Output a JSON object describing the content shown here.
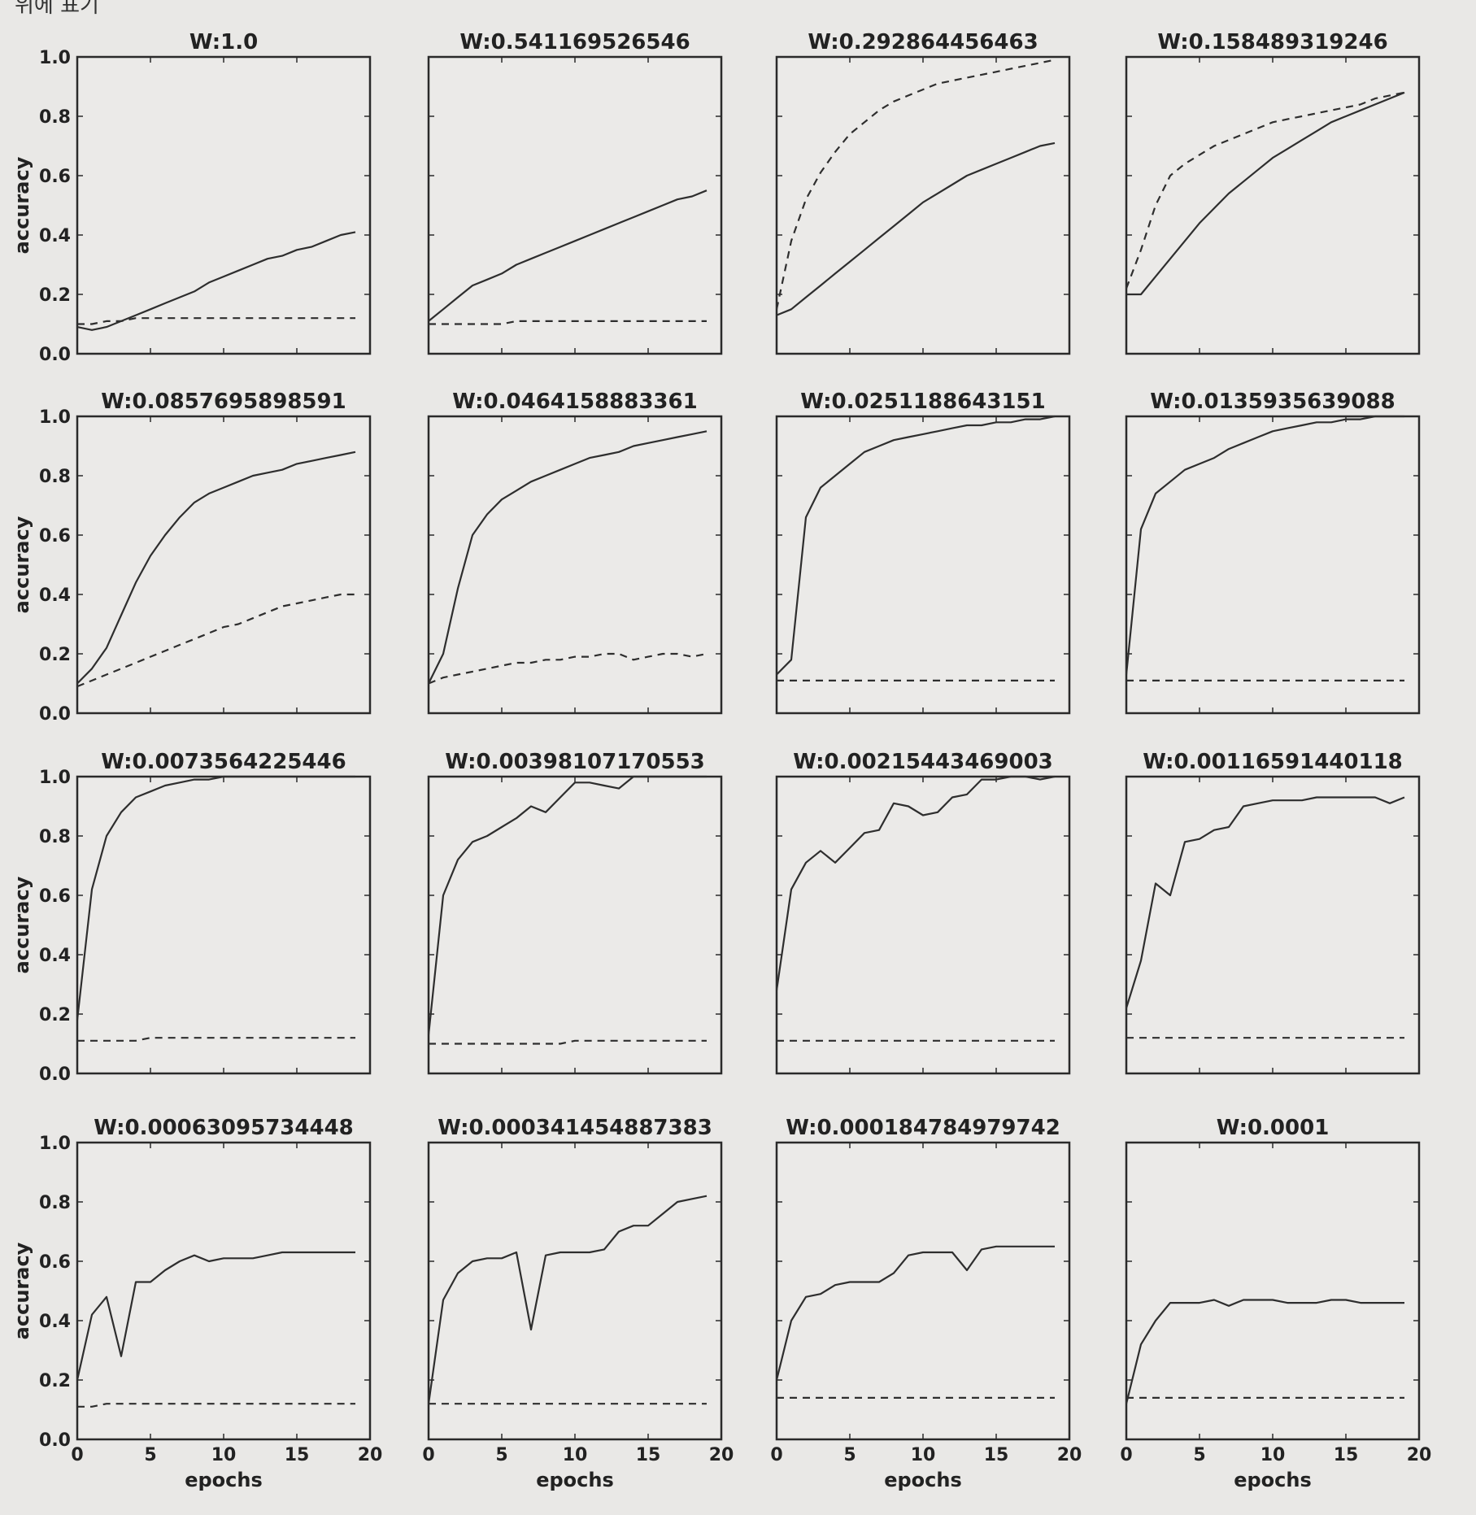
{
  "top_note": "위에 표기",
  "chart_data": {
    "type": "line",
    "layout": "4x4 grid of subplots",
    "xlabel": "epochs",
    "ylabel": "accuracy",
    "xlim": [
      0,
      20
    ],
    "ylim": [
      0.0,
      1.0
    ],
    "xticks": [
      0,
      5,
      10,
      15,
      20
    ],
    "yticks": [
      0.0,
      0.2,
      0.4,
      0.6,
      0.8,
      1.0
    ],
    "line_styles": [
      "solid",
      "dashed"
    ],
    "x": [
      0,
      1,
      2,
      3,
      4,
      5,
      6,
      7,
      8,
      9,
      10,
      11,
      12,
      13,
      14,
      15,
      16,
      17,
      18,
      19
    ],
    "subplots": [
      {
        "title": "W:1.0",
        "series": [
          {
            "style": "solid",
            "values": [
              0.09,
              0.08,
              0.09,
              0.11,
              0.13,
              0.15,
              0.17,
              0.19,
              0.21,
              0.24,
              0.26,
              0.28,
              0.3,
              0.32,
              0.33,
              0.35,
              0.36,
              0.38,
              0.4,
              0.41
            ]
          },
          {
            "style": "dashed",
            "values": [
              0.1,
              0.1,
              0.11,
              0.11,
              0.12,
              0.12,
              0.12,
              0.12,
              0.12,
              0.12,
              0.12,
              0.12,
              0.12,
              0.12,
              0.12,
              0.12,
              0.12,
              0.12,
              0.12,
              0.12
            ]
          }
        ]
      },
      {
        "title": "W:0.541169526546",
        "series": [
          {
            "style": "solid",
            "values": [
              0.11,
              0.15,
              0.19,
              0.23,
              0.25,
              0.27,
              0.3,
              0.32,
              0.34,
              0.36,
              0.38,
              0.4,
              0.42,
              0.44,
              0.46,
              0.48,
              0.5,
              0.52,
              0.53,
              0.55
            ]
          },
          {
            "style": "dashed",
            "values": [
              0.1,
              0.1,
              0.1,
              0.1,
              0.1,
              0.1,
              0.11,
              0.11,
              0.11,
              0.11,
              0.11,
              0.11,
              0.11,
              0.11,
              0.11,
              0.11,
              0.11,
              0.11,
              0.11,
              0.11
            ]
          }
        ]
      },
      {
        "title": "W:0.292864456463",
        "series": [
          {
            "style": "solid",
            "values": [
              0.13,
              0.15,
              0.19,
              0.23,
              0.27,
              0.31,
              0.35,
              0.39,
              0.43,
              0.47,
              0.51,
              0.54,
              0.57,
              0.6,
              0.62,
              0.64,
              0.66,
              0.68,
              0.7,
              0.71
            ]
          },
          {
            "style": "dashed",
            "values": [
              0.15,
              0.38,
              0.52,
              0.61,
              0.68,
              0.74,
              0.78,
              0.82,
              0.85,
              0.87,
              0.89,
              0.91,
              0.92,
              0.93,
              0.94,
              0.95,
              0.96,
              0.97,
              0.98,
              0.99
            ]
          }
        ]
      },
      {
        "title": "W:0.158489319246",
        "series": [
          {
            "style": "solid",
            "values": [
              0.2,
              0.2,
              0.26,
              0.32,
              0.38,
              0.44,
              0.49,
              0.54,
              0.58,
              0.62,
              0.66,
              0.69,
              0.72,
              0.75,
              0.78,
              0.8,
              0.82,
              0.84,
              0.86,
              0.88
            ]
          },
          {
            "style": "dashed",
            "values": [
              0.22,
              0.35,
              0.5,
              0.6,
              0.64,
              0.67,
              0.7,
              0.72,
              0.74,
              0.76,
              0.78,
              0.79,
              0.8,
              0.81,
              0.82,
              0.83,
              0.84,
              0.86,
              0.87,
              0.88
            ]
          }
        ]
      },
      {
        "title": "W:0.0857695898591",
        "series": [
          {
            "style": "solid",
            "values": [
              0.1,
              0.15,
              0.22,
              0.33,
              0.44,
              0.53,
              0.6,
              0.66,
              0.71,
              0.74,
              0.76,
              0.78,
              0.8,
              0.81,
              0.82,
              0.84,
              0.85,
              0.86,
              0.87,
              0.88
            ]
          },
          {
            "style": "dashed",
            "values": [
              0.09,
              0.11,
              0.13,
              0.15,
              0.17,
              0.19,
              0.21,
              0.23,
              0.25,
              0.27,
              0.29,
              0.3,
              0.32,
              0.34,
              0.36,
              0.37,
              0.38,
              0.39,
              0.4,
              0.4
            ]
          }
        ]
      },
      {
        "title": "W:0.0464158883361",
        "series": [
          {
            "style": "solid",
            "values": [
              0.1,
              0.2,
              0.42,
              0.6,
              0.67,
              0.72,
              0.75,
              0.78,
              0.8,
              0.82,
              0.84,
              0.86,
              0.87,
              0.88,
              0.9,
              0.91,
              0.92,
              0.93,
              0.94,
              0.95
            ]
          },
          {
            "style": "dashed",
            "values": [
              0.1,
              0.12,
              0.13,
              0.14,
              0.15,
              0.16,
              0.17,
              0.17,
              0.18,
              0.18,
              0.19,
              0.19,
              0.2,
              0.2,
              0.18,
              0.19,
              0.2,
              0.2,
              0.19,
              0.2
            ]
          }
        ]
      },
      {
        "title": "W:0.0251188643151",
        "series": [
          {
            "style": "solid",
            "values": [
              0.13,
              0.18,
              0.66,
              0.76,
              0.8,
              0.84,
              0.88,
              0.9,
              0.92,
              0.93,
              0.94,
              0.95,
              0.96,
              0.97,
              0.97,
              0.98,
              0.98,
              0.99,
              0.99,
              1.0
            ]
          },
          {
            "style": "dashed",
            "values": [
              0.11,
              0.11,
              0.11,
              0.11,
              0.11,
              0.11,
              0.11,
              0.11,
              0.11,
              0.11,
              0.11,
              0.11,
              0.11,
              0.11,
              0.11,
              0.11,
              0.11,
              0.11,
              0.11,
              0.11
            ]
          }
        ]
      },
      {
        "title": "W:0.0135935639088",
        "series": [
          {
            "style": "solid",
            "values": [
              0.13,
              0.62,
              0.74,
              0.78,
              0.82,
              0.84,
              0.86,
              0.89,
              0.91,
              0.93,
              0.95,
              0.96,
              0.97,
              0.98,
              0.98,
              0.99,
              0.99,
              1.0,
              1.0,
              1.0
            ]
          },
          {
            "style": "dashed",
            "values": [
              0.11,
              0.11,
              0.11,
              0.11,
              0.11,
              0.11,
              0.11,
              0.11,
              0.11,
              0.11,
              0.11,
              0.11,
              0.11,
              0.11,
              0.11,
              0.11,
              0.11,
              0.11,
              0.11,
              0.11
            ]
          }
        ]
      },
      {
        "title": "W:0.0073564225446",
        "series": [
          {
            "style": "solid",
            "values": [
              0.18,
              0.62,
              0.8,
              0.88,
              0.93,
              0.95,
              0.97,
              0.98,
              0.99,
              0.99,
              1.0,
              1.0,
              1.0,
              1.0,
              1.0,
              1.0,
              1.0,
              1.0,
              1.0,
              1.0
            ]
          },
          {
            "style": "dashed",
            "values": [
              0.11,
              0.11,
              0.11,
              0.11,
              0.11,
              0.12,
              0.12,
              0.12,
              0.12,
              0.12,
              0.12,
              0.12,
              0.12,
              0.12,
              0.12,
              0.12,
              0.12,
              0.12,
              0.12,
              0.12
            ]
          }
        ]
      },
      {
        "title": "W:0.00398107170553",
        "series": [
          {
            "style": "solid",
            "values": [
              0.13,
              0.6,
              0.72,
              0.78,
              0.8,
              0.83,
              0.86,
              0.9,
              0.88,
              0.93,
              0.98,
              0.98,
              0.97,
              0.96,
              1.0,
              1.0,
              1.0,
              1.0,
              1.0,
              1.0
            ]
          },
          {
            "style": "dashed",
            "values": [
              0.1,
              0.1,
              0.1,
              0.1,
              0.1,
              0.1,
              0.1,
              0.1,
              0.1,
              0.1,
              0.11,
              0.11,
              0.11,
              0.11,
              0.11,
              0.11,
              0.11,
              0.11,
              0.11,
              0.11
            ]
          }
        ]
      },
      {
        "title": "W:0.00215443469003",
        "series": [
          {
            "style": "solid",
            "values": [
              0.28,
              0.62,
              0.71,
              0.75,
              0.71,
              0.76,
              0.81,
              0.82,
              0.91,
              0.9,
              0.87,
              0.88,
              0.93,
              0.94,
              0.99,
              0.99,
              1.0,
              1.0,
              0.99,
              1.0
            ]
          },
          {
            "style": "dashed",
            "values": [
              0.11,
              0.11,
              0.11,
              0.11,
              0.11,
              0.11,
              0.11,
              0.11,
              0.11,
              0.11,
              0.11,
              0.11,
              0.11,
              0.11,
              0.11,
              0.11,
              0.11,
              0.11,
              0.11,
              0.11
            ]
          }
        ]
      },
      {
        "title": "W:0.00116591440118",
        "series": [
          {
            "style": "solid",
            "values": [
              0.22,
              0.38,
              0.64,
              0.6,
              0.78,
              0.79,
              0.82,
              0.83,
              0.9,
              0.91,
              0.92,
              0.92,
              0.92,
              0.93,
              0.93,
              0.93,
              0.93,
              0.93,
              0.91,
              0.93
            ]
          },
          {
            "style": "dashed",
            "values": [
              0.12,
              0.12,
              0.12,
              0.12,
              0.12,
              0.12,
              0.12,
              0.12,
              0.12,
              0.12,
              0.12,
              0.12,
              0.12,
              0.12,
              0.12,
              0.12,
              0.12,
              0.12,
              0.12,
              0.12
            ]
          }
        ]
      },
      {
        "title": "W:0.00063095734448",
        "series": [
          {
            "style": "solid",
            "values": [
              0.2,
              0.42,
              0.48,
              0.28,
              0.53,
              0.53,
              0.57,
              0.6,
              0.62,
              0.6,
              0.61,
              0.61,
              0.61,
              0.62,
              0.63,
              0.63,
              0.63,
              0.63,
              0.63,
              0.63
            ]
          },
          {
            "style": "dashed",
            "values": [
              0.11,
              0.11,
              0.12,
              0.12,
              0.12,
              0.12,
              0.12,
              0.12,
              0.12,
              0.12,
              0.12,
              0.12,
              0.12,
              0.12,
              0.12,
              0.12,
              0.12,
              0.12,
              0.12,
              0.12
            ]
          }
        ]
      },
      {
        "title": "W:0.000341454887383",
        "series": [
          {
            "style": "solid",
            "values": [
              0.12,
              0.47,
              0.56,
              0.6,
              0.61,
              0.61,
              0.63,
              0.37,
              0.62,
              0.63,
              0.63,
              0.63,
              0.64,
              0.7,
              0.72,
              0.72,
              0.76,
              0.8,
              0.81,
              0.82
            ]
          },
          {
            "style": "dashed",
            "values": [
              0.12,
              0.12,
              0.12,
              0.12,
              0.12,
              0.12,
              0.12,
              0.12,
              0.12,
              0.12,
              0.12,
              0.12,
              0.12,
              0.12,
              0.12,
              0.12,
              0.12,
              0.12,
              0.12,
              0.12
            ]
          }
        ]
      },
      {
        "title": "W:0.000184784979742",
        "series": [
          {
            "style": "solid",
            "values": [
              0.2,
              0.4,
              0.48,
              0.49,
              0.52,
              0.53,
              0.53,
              0.53,
              0.56,
              0.62,
              0.63,
              0.63,
              0.63,
              0.57,
              0.64,
              0.65,
              0.65,
              0.65,
              0.65,
              0.65
            ]
          },
          {
            "style": "dashed",
            "values": [
              0.14,
              0.14,
              0.14,
              0.14,
              0.14,
              0.14,
              0.14,
              0.14,
              0.14,
              0.14,
              0.14,
              0.14,
              0.14,
              0.14,
              0.14,
              0.14,
              0.14,
              0.14,
              0.14,
              0.14
            ]
          }
        ]
      },
      {
        "title": "W:0.0001",
        "series": [
          {
            "style": "solid",
            "values": [
              0.12,
              0.32,
              0.4,
              0.46,
              0.46,
              0.46,
              0.47,
              0.45,
              0.47,
              0.47,
              0.47,
              0.46,
              0.46,
              0.46,
              0.47,
              0.47,
              0.46,
              0.46,
              0.46,
              0.46
            ]
          },
          {
            "style": "dashed",
            "values": [
              0.14,
              0.14,
              0.14,
              0.14,
              0.14,
              0.14,
              0.14,
              0.14,
              0.14,
              0.14,
              0.14,
              0.14,
              0.14,
              0.14,
              0.14,
              0.14,
              0.14,
              0.14,
              0.14,
              0.14
            ]
          }
        ]
      }
    ]
  }
}
